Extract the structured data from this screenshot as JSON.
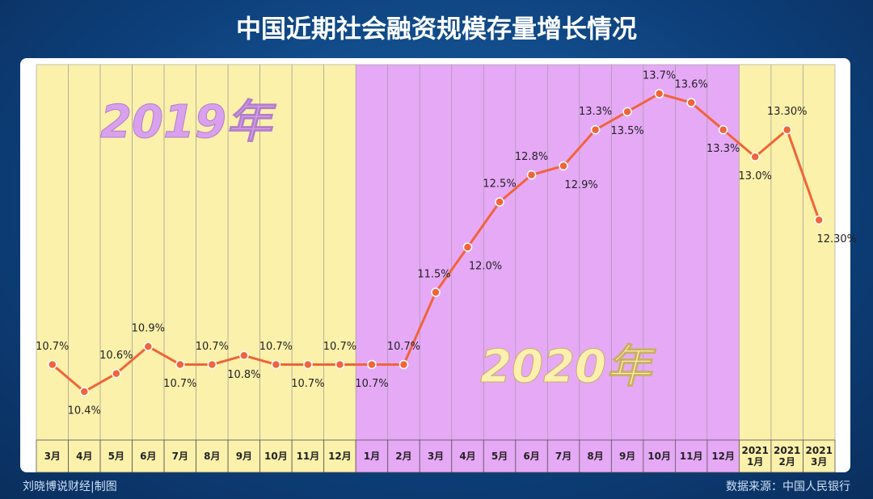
{
  "chart_data": {
    "type": "line",
    "title": "中国近期社会融资规模存量增长情况",
    "categories": [
      "3月",
      "4月",
      "5月",
      "6月",
      "7月",
      "8月",
      "9月",
      "10月",
      "11月",
      "12月",
      "1月",
      "2月",
      "3月",
      "4月",
      "5月",
      "6月",
      "7月",
      "8月",
      "9月",
      "10月",
      "11月",
      "12月",
      "2021 1月",
      "2021 2月",
      "2021 3月"
    ],
    "series": [
      {
        "color": "#f0643a",
        "values": [
          10.7,
          10.4,
          10.6,
          10.9,
          10.7,
          10.7,
          10.8,
          10.7,
          10.7,
          10.7,
          10.7,
          10.7,
          11.5,
          12.0,
          12.5,
          12.8,
          12.9,
          13.3,
          13.5,
          13.7,
          13.6,
          13.3,
          13.0,
          13.3,
          12.3
        ],
        "value_labels": [
          "10.7%",
          "10.4%",
          "10.6%",
          "10.9%",
          "10.7%",
          "10.7%",
          "10.8%",
          "10.7%",
          "10.7%",
          "10.7%",
          "10.7%",
          "10.7%",
          "11.5%",
          "12.0%",
          "12.5%",
          "12.8%",
          "12.9%",
          "13.3%",
          "13.5%",
          "13.7%",
          "13.6%",
          "13.3%",
          "13.0%",
          "13.30%",
          "12.30%"
        ]
      }
    ],
    "annotations": [
      "2019年",
      "2020年"
    ],
    "credit": "刘晓博说财经|制图",
    "source": "数据来源：中国人民银行"
  }
}
